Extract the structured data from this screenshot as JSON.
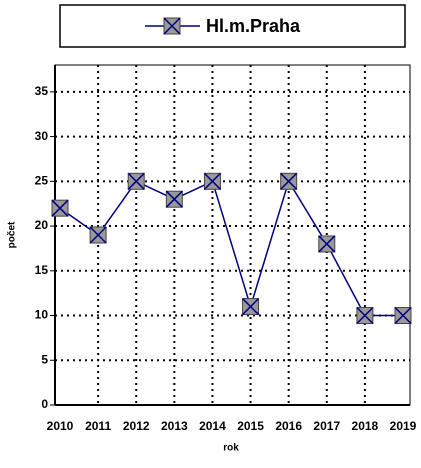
{
  "chart_data": {
    "type": "line",
    "x_label": "rok",
    "y_label": "počet",
    "categories": [
      "2010",
      "2011",
      "2012",
      "2013",
      "2014",
      "2015",
      "2016",
      "2017",
      "2018",
      "2019"
    ],
    "series": [
      {
        "name": "Hl.m.Praha",
        "color": "#000080",
        "values": [
          22,
          19,
          25,
          23,
          25,
          11,
          25,
          18,
          10,
          10
        ]
      }
    ],
    "ylim": [
      0,
      38
    ],
    "yticks": [
      0,
      5,
      10,
      15,
      20,
      25,
      30,
      35
    ],
    "grid": true,
    "legend": "top"
  }
}
